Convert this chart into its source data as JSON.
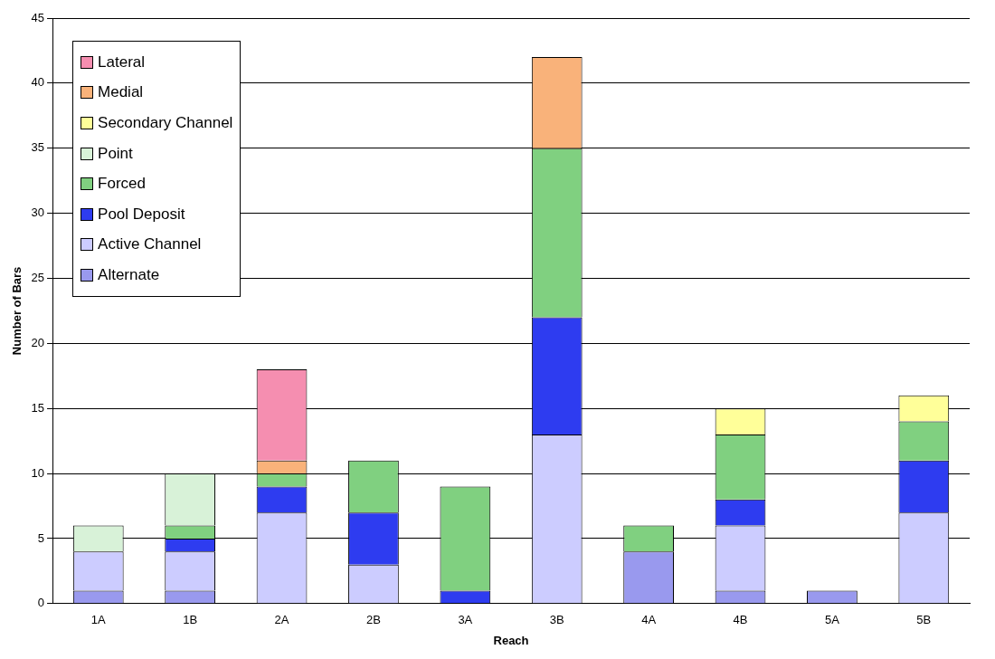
{
  "chart_data": {
    "type": "bar",
    "stacked": true,
    "xlabel": "Reach",
    "ylabel": "Number of Bars",
    "categories": [
      "1A",
      "1B",
      "2A",
      "2B",
      "3A",
      "3B",
      "4A",
      "4B",
      "5A",
      "5B"
    ],
    "ylim": [
      0,
      45
    ],
    "yticks": [
      0,
      5,
      10,
      15,
      20,
      25,
      30,
      35,
      40,
      45
    ],
    "grid": "y",
    "legend": "top left",
    "series": [
      {
        "name": "Alternate",
        "color": "#9999ee",
        "values": [
          1,
          1,
          null,
          null,
          null,
          null,
          4,
          1,
          1,
          null
        ]
      },
      {
        "name": "Active Channel",
        "color": "#ccccff",
        "values": [
          3,
          3,
          7,
          3,
          null,
          13,
          null,
          5,
          null,
          7
        ]
      },
      {
        "name": "Pool Deposit",
        "color": "#2e3cf0",
        "values": [
          null,
          1,
          2,
          4,
          1,
          9,
          null,
          2,
          null,
          4
        ]
      },
      {
        "name": "Forced",
        "color": "#80d080",
        "values": [
          null,
          1,
          1,
          4,
          8,
          13,
          2,
          5,
          null,
          3
        ]
      },
      {
        "name": "Point",
        "color": "#d8f2d8",
        "values": [
          2,
          4,
          null,
          null,
          null,
          null,
          null,
          null,
          null,
          null
        ]
      },
      {
        "name": "Secondary Channel",
        "color": "#ffff99",
        "values": [
          null,
          null,
          null,
          null,
          null,
          null,
          null,
          2,
          null,
          2
        ]
      },
      {
        "name": "Medial",
        "color": "#f9b27a",
        "values": [
          null,
          null,
          1,
          null,
          null,
          7,
          null,
          null,
          null,
          null
        ]
      },
      {
        "name": "Lateral",
        "color": "#f58eb0",
        "values": [
          null,
          null,
          7,
          null,
          null,
          null,
          null,
          null,
          null,
          null
        ]
      }
    ]
  }
}
